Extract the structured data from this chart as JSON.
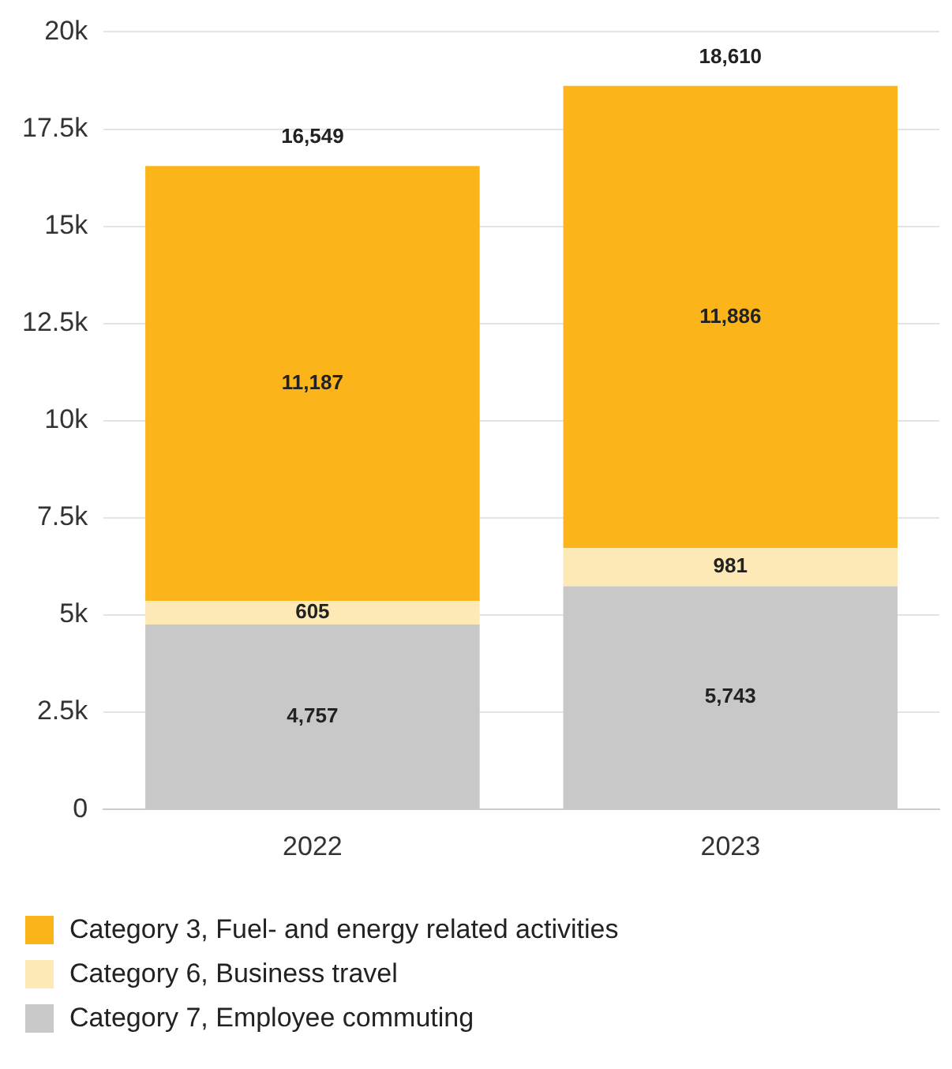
{
  "chart_data": {
    "type": "bar",
    "stacked": true,
    "categories": [
      "2022",
      "2023"
    ],
    "series": [
      {
        "name": "Category 7, Employee commuting",
        "color": "#c8c8c8",
        "values": [
          4757,
          5743
        ],
        "value_labels": [
          "4,757",
          "5,743"
        ]
      },
      {
        "name": "Category 6, Business travel",
        "color": "#fde9b5",
        "values": [
          605,
          981
        ],
        "value_labels": [
          "605",
          "981"
        ]
      },
      {
        "name": "Category 3, Fuel- and energy related activities",
        "color": "#fbb41a",
        "values": [
          11187,
          11886
        ],
        "value_labels": [
          "11,187",
          "11,886"
        ]
      }
    ],
    "totals": [
      "16,549",
      "18,610"
    ],
    "ylim": [
      0,
      20000
    ],
    "yticks": [
      {
        "value": 0,
        "label": "0"
      },
      {
        "value": 2500,
        "label": "2.5k"
      },
      {
        "value": 5000,
        "label": "5k"
      },
      {
        "value": 7500,
        "label": "7.5k"
      },
      {
        "value": 10000,
        "label": "10k"
      },
      {
        "value": 12500,
        "label": "12.5k"
      },
      {
        "value": 15000,
        "label": "15k"
      },
      {
        "value": 17500,
        "label": "17.5k"
      },
      {
        "value": 20000,
        "label": "20k"
      }
    ],
    "grid": "y",
    "legend": "bottom"
  }
}
